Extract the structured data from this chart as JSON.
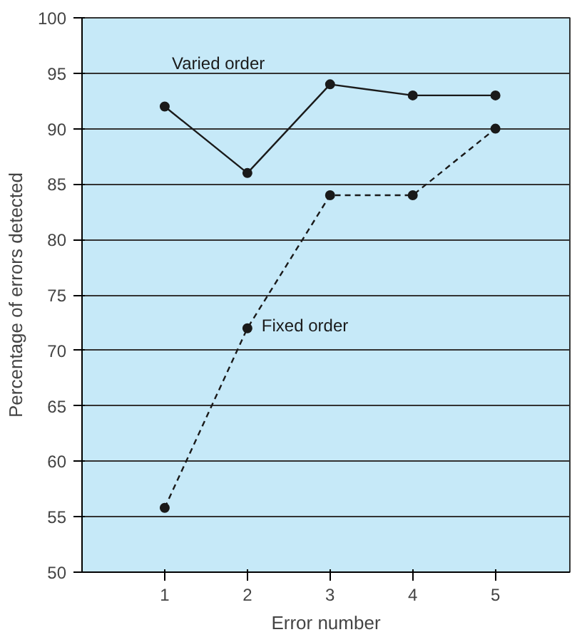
{
  "chart_data": {
    "type": "line",
    "xlabel": "Error number",
    "ylabel": "Percentage of errors detected",
    "x": [
      1,
      2,
      3,
      4,
      5
    ],
    "series": [
      {
        "name": "Varied order",
        "color": "#1a1a1a",
        "values": [
          92,
          86,
          94,
          93,
          93
        ],
        "line_style": "solid"
      },
      {
        "name": "Fixed order",
        "color": "#1a1a1a",
        "values": [
          55.8,
          72,
          84,
          84,
          90
        ],
        "line_style": "dashed"
      }
    ],
    "xlim": [
      0,
      5.9
    ],
    "xticks": [
      1,
      2,
      3,
      4,
      5
    ],
    "ylim": [
      50,
      100
    ],
    "yticks": [
      50,
      55,
      60,
      65,
      70,
      75,
      80,
      85,
      90,
      95,
      100
    ],
    "grid": "y",
    "marker": "circle"
  }
}
